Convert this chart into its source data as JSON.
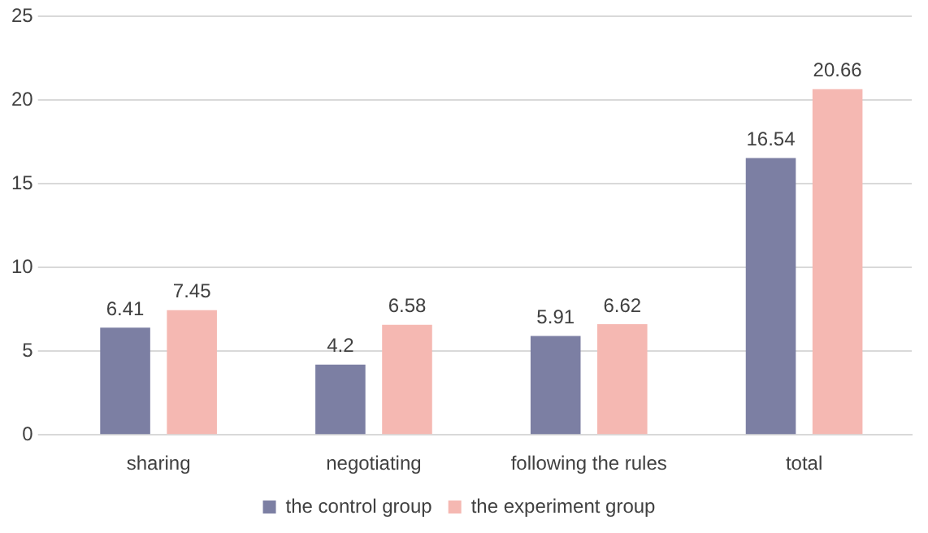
{
  "chart_data": {
    "type": "bar",
    "categories": [
      "sharing",
      "negotiating",
      "following the rules",
      "total"
    ],
    "series": [
      {
        "name": "the control group",
        "color": "#7c7fa3",
        "values": [
          6.41,
          4.2,
          5.91,
          16.54
        ]
      },
      {
        "name": "the experiment group",
        "color": "#f5b8b2",
        "values": [
          7.45,
          6.58,
          6.62,
          20.66
        ]
      }
    ],
    "ylim": [
      0,
      25
    ],
    "yticks": [
      0,
      5,
      10,
      15,
      20,
      25
    ],
    "grid": "y",
    "legend": "bottom",
    "data_labels": true
  }
}
